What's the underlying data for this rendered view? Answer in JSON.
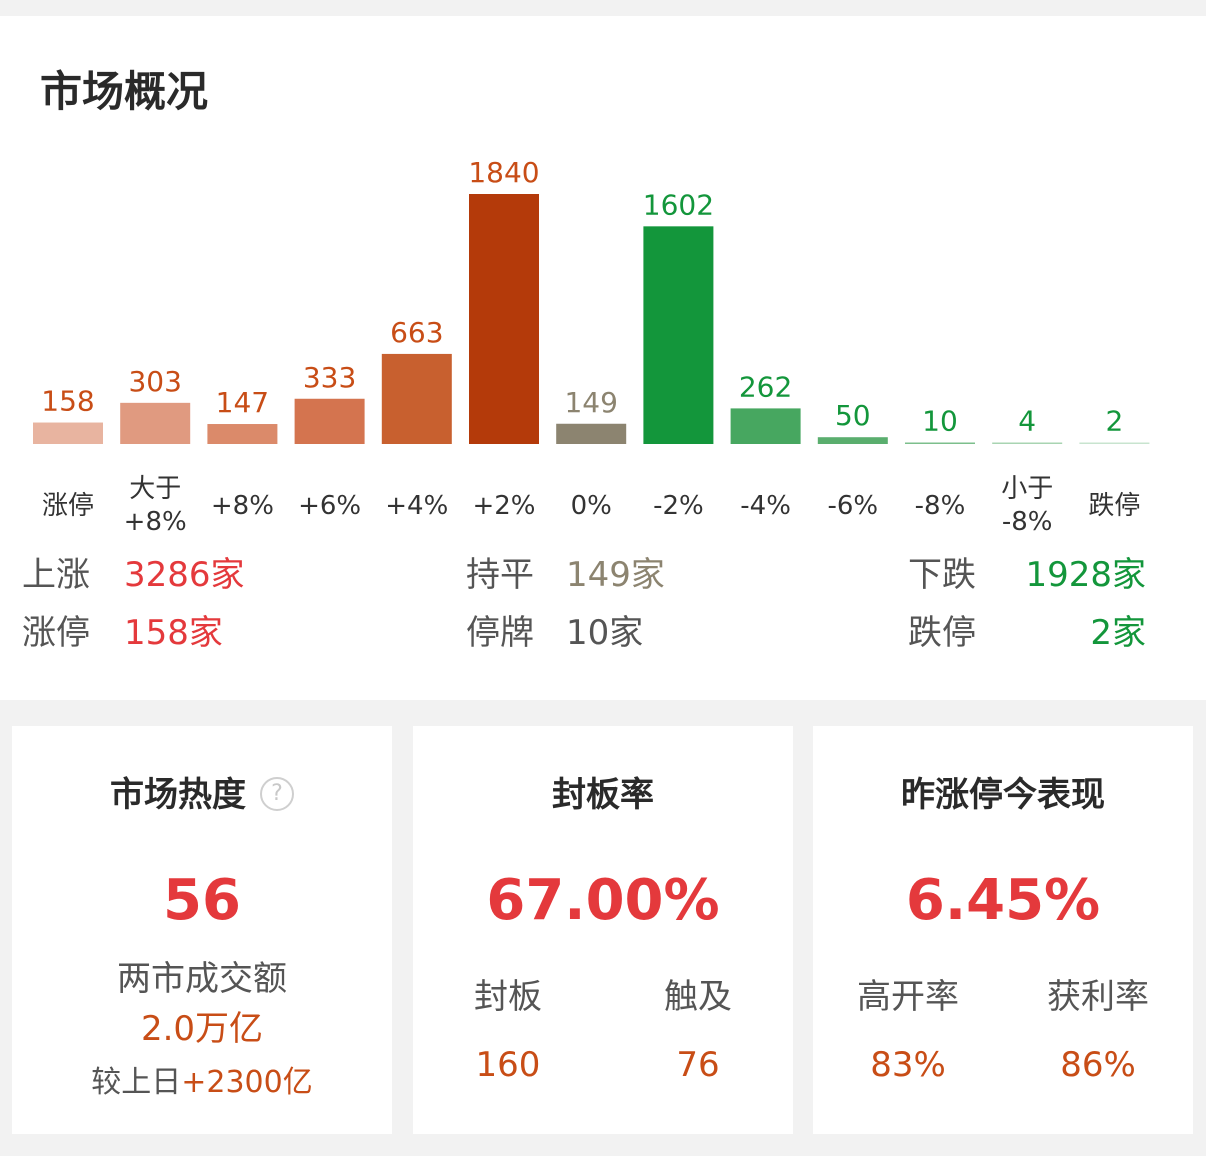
{
  "title": "市场概况",
  "chart_data": {
    "type": "bar",
    "categories": [
      "涨停",
      "大于\n+8%",
      "+8%",
      "+6%",
      "+4%",
      "+2%",
      "0%",
      "-2%",
      "-4%",
      "-6%",
      "-8%",
      "小于\n-8%",
      "跌停"
    ],
    "values": [
      158,
      303,
      147,
      333,
      663,
      1840,
      149,
      1602,
      262,
      50,
      10,
      4,
      2
    ],
    "bar_colors": [
      "#e8b4a0",
      "#e09a80",
      "#db8a6a",
      "#d4744f",
      "#c8602f",
      "#b43a0a",
      "#8c8470",
      "#13963b",
      "#47a760",
      "#5aae6e",
      "#7cbf8c",
      "#a8d4b2",
      "#c8e4cf"
    ],
    "label_colors": [
      "#c84d16",
      "#c84d16",
      "#c84d16",
      "#c84d16",
      "#c84d16",
      "#c84d16",
      "#8c8470",
      "#13963b",
      "#13963b",
      "#13963b",
      "#13963b",
      "#13963b",
      "#13963b"
    ],
    "title": "",
    "xlabel": "",
    "ylabel": ""
  },
  "stats": {
    "up_label": "上涨",
    "up_value": "3286家",
    "flat_label": "持平",
    "flat_value": "149家",
    "down_label": "下跌",
    "down_value": "1928家",
    "limit_up_label": "涨停",
    "limit_up_value": "158家",
    "suspend_label": "停牌",
    "suspend_value": "10家",
    "limit_down_label": "跌停",
    "limit_down_value": "2家"
  },
  "colors": {
    "red": "#e4393c",
    "orange": "#c84d16",
    "green": "#13963b",
    "gray": "#8c8470"
  },
  "cards": {
    "heat": {
      "title": "市场热度",
      "value": "56",
      "turnover_label": "两市成交额",
      "turnover_value": "2.0万亿",
      "compare_prefix": "较上日",
      "compare_value": "+2300亿"
    },
    "seal": {
      "title": "封板率",
      "value": "67.00%",
      "sealed_label": "封板",
      "sealed_value": "160",
      "touched_label": "触及",
      "touched_value": "76"
    },
    "yesterday": {
      "title": "昨涨停今表现",
      "value": "6.45%",
      "open_label": "高开率",
      "open_value": "83%",
      "profit_label": "获利率",
      "profit_value": "86%"
    }
  }
}
